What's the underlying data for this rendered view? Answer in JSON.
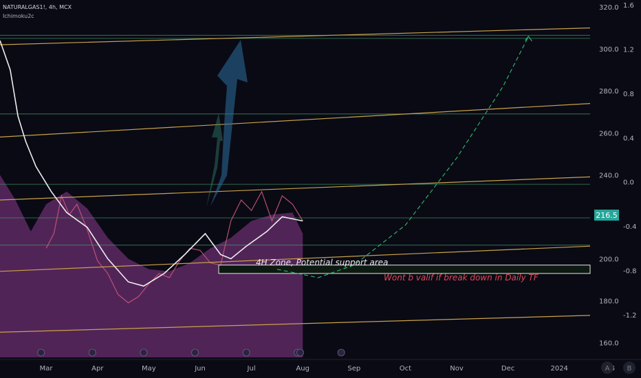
{
  "header": {
    "symbol": "NATURALGAS1!, 4h, MCX",
    "indicator": "Ichimoku2c"
  },
  "price_label": "216.5",
  "colors": {
    "background": "#0a0a14",
    "cloud": "#6a2d6e",
    "price_tag": "#26a69a",
    "channel": "#c9a34a",
    "level": "#3f9b6a",
    "arrow": "#3b8fd0",
    "projection": "#2fbf71",
    "warning": "#e04a5a"
  },
  "annotations": {
    "zone_label": "4H Zone, Potential support area",
    "warning_label": "Wont b valif if break down in Daily TF"
  },
  "buttons": {
    "auto": "A",
    "bar": "B"
  },
  "chart_data": {
    "type": "line",
    "title": "NATURALGAS1!, 4h, MCX",
    "xlabel": "",
    "ylabel": "",
    "x_ticks": [
      "Mar",
      "Apr",
      "May",
      "Jun",
      "Jul",
      "Aug",
      "Sep",
      "Oct",
      "Nov",
      "Dec",
      "2024",
      "24"
    ],
    "y_ticks_left": [
      "160.0",
      "180.0",
      "200.0",
      "220.0",
      "240.0",
      "260.0",
      "280.0",
      "300.0",
      "320.0"
    ],
    "y_ticks_right": [
      "-1.2",
      "-0.8",
      "-0.4",
      "0.0",
      "0.4",
      "0.8",
      "1.2",
      "1.6"
    ],
    "ylim": [
      153,
      322
    ],
    "x_range_months": [
      -0.9,
      10.6
    ],
    "last_price": 216.5,
    "price_series": {
      "name": "NATURALGAS1!",
      "x": [
        0.0,
        0.15,
        0.3,
        0.45,
        0.6,
        0.8,
        1.0,
        1.2,
        1.4,
        1.6,
        1.8,
        2.0,
        2.2,
        2.4,
        2.6,
        2.8,
        3.0,
        3.2,
        3.4,
        3.6,
        3.8,
        4.0,
        4.2,
        4.4,
        4.6,
        4.8,
        5.0
      ],
      "values": [
        205,
        212,
        230,
        221,
        226,
        214,
        199,
        193,
        183,
        179,
        182,
        188,
        193,
        191,
        199,
        205,
        204,
        198,
        197,
        218,
        228,
        223,
        232,
        218,
        230,
        226,
        218
      ]
    },
    "cloud_series": {
      "name": "Ichimoku cloud",
      "x": [
        -0.9,
        -0.6,
        -0.3,
        0.0,
        0.4,
        0.8,
        1.2,
        1.6,
        2.0,
        2.4,
        2.8,
        3.2,
        3.6,
        4.0,
        4.4,
        4.8,
        5.0
      ],
      "values": [
        240,
        228,
        213,
        226,
        232,
        224,
        210,
        200,
        195,
        194,
        198,
        205,
        210,
        218,
        221,
        222,
        212
      ]
    },
    "baseline_series": {
      "name": "Ichimoku baseline",
      "x": [
        -0.9,
        -0.7,
        -0.55,
        -0.4,
        -0.2,
        0.1,
        0.4,
        0.8,
        1.2,
        1.6,
        1.9,
        2.3,
        2.7,
        3.1,
        3.4,
        3.6,
        3.9,
        4.3,
        4.6,
        5.0
      ],
      "values": [
        304,
        290,
        268,
        256,
        244,
        232,
        222,
        215,
        200,
        189,
        187,
        193,
        202,
        212,
        202,
        200,
        206,
        213,
        220,
        218
      ]
    },
    "channel_lines": [
      {
        "x": [
          -0.9,
          10.6
        ],
        "values": [
          302,
          310
        ]
      },
      {
        "x": [
          -0.9,
          10.6
        ],
        "values": [
          258,
          274
        ]
      },
      {
        "x": [
          -0.9,
          10.6
        ],
        "values": [
          228,
          239
        ]
      },
      {
        "x": [
          -0.9,
          10.6
        ],
        "values": [
          194,
          206
        ]
      },
      {
        "x": [
          -0.9,
          10.6
        ],
        "values": [
          165,
          173
        ]
      }
    ],
    "horizontal_levels": [
      306.5,
      305.0,
      269.0,
      235.5,
      219.5,
      206.5
    ],
    "support_zone": [
      193,
      197
    ],
    "projection_path": {
      "x": [
        4.5,
        5.3,
        6.0,
        7.0,
        8.0,
        8.9,
        9.4
      ],
      "values": [
        195,
        191,
        197,
        216,
        248,
        282,
        306
      ]
    }
  }
}
